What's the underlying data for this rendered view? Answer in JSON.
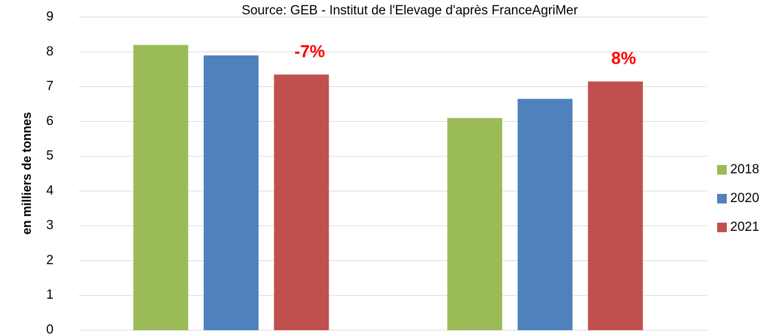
{
  "chart_data": {
    "type": "bar",
    "subtitle": "Source: GEB - Institut de l'Elevage d'après FranceAgriMer",
    "ylabel": "en milliers de tonnes",
    "categories": [
      null,
      null
    ],
    "series": [
      {
        "name": "2018",
        "color": "#9bbb59",
        "values": [
          8.2,
          6.1
        ]
      },
      {
        "name": "2020",
        "color": "#4f81bd",
        "values": [
          7.9,
          6.65
        ]
      },
      {
        "name": "2021",
        "color": "#c0504d",
        "values": [
          7.35,
          7.15
        ]
      }
    ],
    "annotations": [
      "-7%",
      "8%"
    ],
    "annotation_color": "#ff0000",
    "ylim": [
      0,
      9
    ],
    "yticks": [
      0,
      1,
      2,
      3,
      4,
      5,
      6,
      7,
      8,
      9
    ],
    "grid": true,
    "legend": "right"
  }
}
